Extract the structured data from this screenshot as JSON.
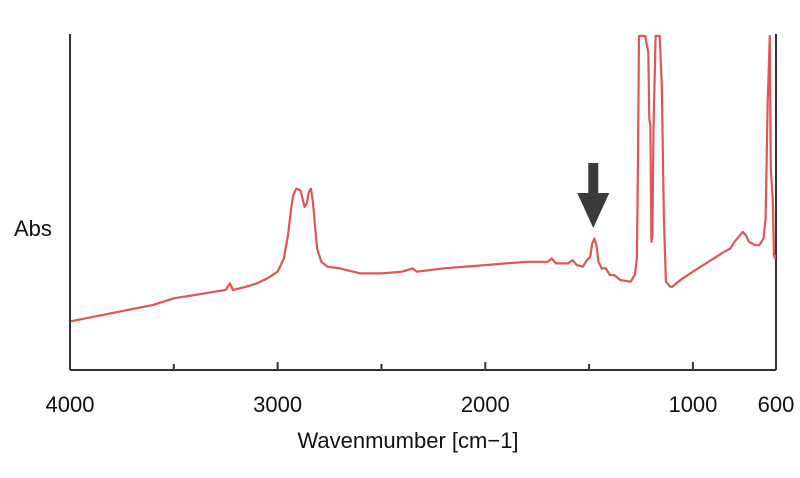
{
  "chart_data": {
    "type": "line",
    "title": "",
    "xlabel": "Wavenmumber [cm−1]",
    "ylabel": "Abs",
    "xlim": [
      4000,
      600
    ],
    "x_reversed": true,
    "ylim": [
      0,
      1
    ],
    "grid": false,
    "legend": "none",
    "x_ticks": [
      {
        "value": 4000,
        "label": "4000"
      },
      {
        "value": 3000,
        "label": "3000"
      },
      {
        "value": 2000,
        "label": "2000"
      },
      {
        "value": 1000,
        "label": "1000"
      },
      {
        "value": 600,
        "label": "600"
      }
    ],
    "x_minor_ticks": [
      3500,
      2500,
      1500
    ],
    "annotation": {
      "type": "arrow-down",
      "x": 1480
    },
    "series": [
      {
        "color": "#e05555",
        "points": [
          [
            4000,
            0.14
          ],
          [
            3800,
            0.165
          ],
          [
            3600,
            0.19
          ],
          [
            3500,
            0.21
          ],
          [
            3400,
            0.22
          ],
          [
            3300,
            0.23
          ],
          [
            3250,
            0.235
          ],
          [
            3230,
            0.255
          ],
          [
            3215,
            0.235
          ],
          [
            3150,
            0.245
          ],
          [
            3100,
            0.255
          ],
          [
            3050,
            0.27
          ],
          [
            3000,
            0.29
          ],
          [
            2970,
            0.33
          ],
          [
            2950,
            0.4
          ],
          [
            2935,
            0.48
          ],
          [
            2925,
            0.52
          ],
          [
            2910,
            0.54
          ],
          [
            2890,
            0.535
          ],
          [
            2880,
            0.51
          ],
          [
            2870,
            0.485
          ],
          [
            2860,
            0.495
          ],
          [
            2850,
            0.53
          ],
          [
            2840,
            0.54
          ],
          [
            2830,
            0.5
          ],
          [
            2810,
            0.36
          ],
          [
            2790,
            0.32
          ],
          [
            2760,
            0.305
          ],
          [
            2700,
            0.3
          ],
          [
            2600,
            0.285
          ],
          [
            2500,
            0.285
          ],
          [
            2400,
            0.29
          ],
          [
            2350,
            0.3
          ],
          [
            2330,
            0.29
          ],
          [
            2200,
            0.3
          ],
          [
            2100,
            0.305
          ],
          [
            2000,
            0.31
          ],
          [
            1900,
            0.315
          ],
          [
            1800,
            0.32
          ],
          [
            1700,
            0.32
          ],
          [
            1680,
            0.33
          ],
          [
            1660,
            0.315
          ],
          [
            1600,
            0.315
          ],
          [
            1580,
            0.325
          ],
          [
            1560,
            0.31
          ],
          [
            1530,
            0.305
          ],
          [
            1510,
            0.325
          ],
          [
            1495,
            0.335
          ],
          [
            1485,
            0.375
          ],
          [
            1475,
            0.39
          ],
          [
            1465,
            0.37
          ],
          [
            1455,
            0.32
          ],
          [
            1440,
            0.3
          ],
          [
            1420,
            0.3
          ],
          [
            1400,
            0.28
          ],
          [
            1380,
            0.28
          ],
          [
            1350,
            0.265
          ],
          [
            1300,
            0.26
          ],
          [
            1280,
            0.28
          ],
          [
            1270,
            0.33
          ],
          [
            1265,
            0.6
          ],
          [
            1260,
            1.0
          ],
          [
            1245,
            1.0
          ],
          [
            1230,
            1.0
          ],
          [
            1215,
            0.95
          ],
          [
            1210,
            0.75
          ],
          [
            1205,
            0.73
          ],
          [
            1200,
            0.38
          ],
          [
            1195,
            0.4
          ],
          [
            1190,
            0.72
          ],
          [
            1180,
            1.0
          ],
          [
            1160,
            1.0
          ],
          [
            1150,
            0.85
          ],
          [
            1140,
            0.45
          ],
          [
            1130,
            0.26
          ],
          [
            1110,
            0.245
          ],
          [
            1100,
            0.245
          ],
          [
            1080,
            0.255
          ],
          [
            1050,
            0.27
          ],
          [
            1000,
            0.29
          ],
          [
            950,
            0.31
          ],
          [
            900,
            0.33
          ],
          [
            850,
            0.35
          ],
          [
            820,
            0.36
          ],
          [
            800,
            0.38
          ],
          [
            780,
            0.395
          ],
          [
            760,
            0.41
          ],
          [
            745,
            0.4
          ],
          [
            730,
            0.38
          ],
          [
            700,
            0.37
          ],
          [
            680,
            0.37
          ],
          [
            660,
            0.39
          ],
          [
            650,
            0.45
          ],
          [
            640,
            0.8
          ],
          [
            630,
            1.0
          ],
          [
            625,
            0.6
          ],
          [
            615,
            0.5
          ],
          [
            610,
            0.34
          ],
          [
            605,
            0.33
          ],
          [
            600,
            0.34
          ]
        ]
      }
    ]
  }
}
